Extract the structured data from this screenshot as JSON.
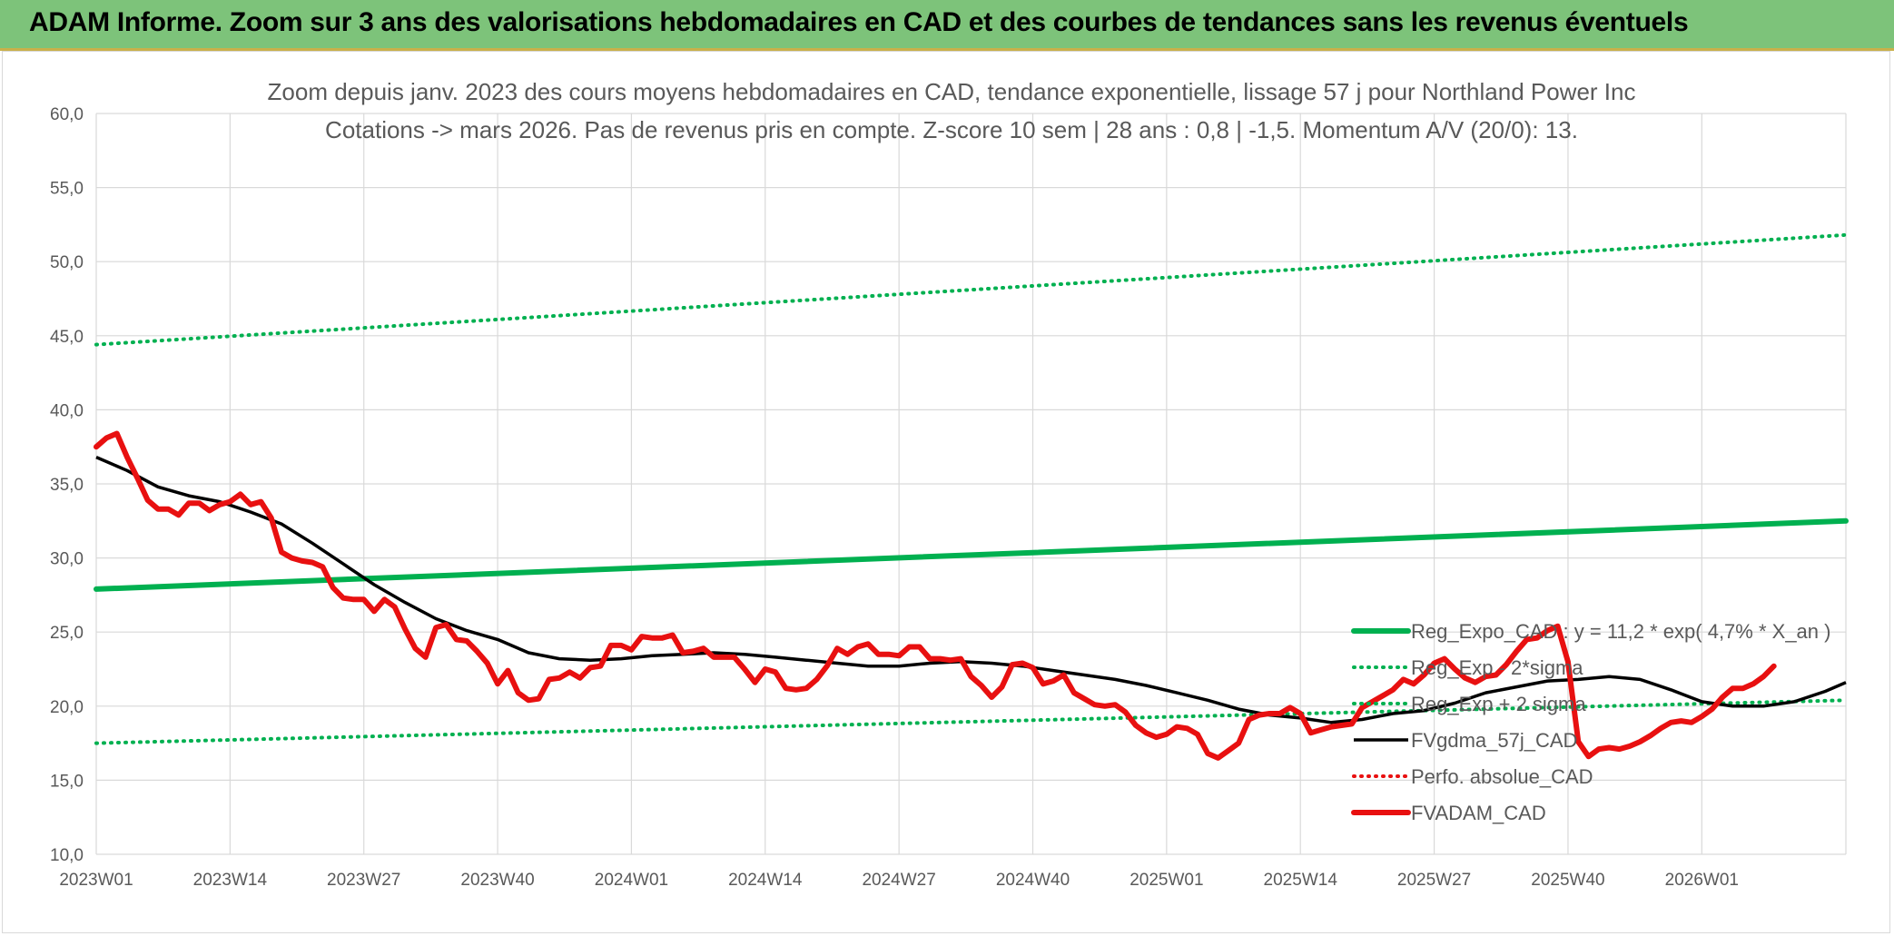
{
  "banner": {
    "title": "ADAM Informe. Zoom sur 3 ans des valorisations hebdomadaires en CAD et des courbes de tendances sans les revenus éventuels"
  },
  "colors": {
    "banner_bg": "#7dc37a",
    "trend_green": "#00b050",
    "price_red": "#e81010",
    "smooth_black": "#000000",
    "text_grey": "#595959"
  },
  "chart_data": {
    "type": "line",
    "title_line1": "Zoom depuis janv. 2023 des cours moyens hebdomadaires en CAD, tendance exponentielle, lissage 57 j pour Northland Power Inc",
    "title_line2": "Cotations -> mars 2026. Pas de revenus pris en compte. Z-score 10 sem | 28 ans : 0,8 | -1,5. Momentum A/V (20/0): 13.",
    "ylim": [
      10,
      60
    ],
    "y_ticks": [
      "10,0",
      "15,0",
      "20,0",
      "25,0",
      "30,0",
      "35,0",
      "40,0",
      "45,0",
      "50,0",
      "55,0",
      "60,0"
    ],
    "x_ticks": [
      "2023W01",
      "2023W14",
      "2023W27",
      "2023W40",
      "2024W01",
      "2024W14",
      "2024W27",
      "2024W40",
      "2025W01",
      "2025W14",
      "2025W27",
      "2025W40",
      "2026W01"
    ],
    "week_span": 170,
    "grid": true,
    "legend_position": "right",
    "series": [
      {
        "name": "Reg_Expo_CAD : y = 11,2 * exp( 4,7% *  X_an )",
        "style": "solid-thick",
        "color": "#00b050",
        "points": [
          [
            0,
            27.9
          ],
          [
            170,
            32.5
          ]
        ]
      },
      {
        "name": "Reg_Exp - 2*sigma",
        "style": "dotted",
        "color": "#00b050",
        "points": [
          [
            0,
            17.5
          ],
          [
            170,
            20.4
          ]
        ]
      },
      {
        "name": "Reg_Exp + 2 sigma",
        "style": "dotted",
        "color": "#00b050",
        "points": [
          [
            0,
            44.4
          ],
          [
            170,
            51.8
          ]
        ]
      },
      {
        "name": "FVgdma_57j_CAD",
        "style": "solid",
        "color": "#000000",
        "points": [
          [
            0,
            36.8
          ],
          [
            3,
            35.9
          ],
          [
            6,
            34.8
          ],
          [
            9,
            34.2
          ],
          [
            12,
            33.8
          ],
          [
            15,
            33.1
          ],
          [
            18,
            32.3
          ],
          [
            21,
            31.0
          ],
          [
            24,
            29.6
          ],
          [
            27,
            28.2
          ],
          [
            30,
            27.0
          ],
          [
            33,
            25.9
          ],
          [
            36,
            25.1
          ],
          [
            39,
            24.5
          ],
          [
            42,
            23.6
          ],
          [
            45,
            23.2
          ],
          [
            48,
            23.1
          ],
          [
            51,
            23.2
          ],
          [
            54,
            23.4
          ],
          [
            57,
            23.5
          ],
          [
            60,
            23.6
          ],
          [
            63,
            23.5
          ],
          [
            66,
            23.3
          ],
          [
            69,
            23.1
          ],
          [
            72,
            22.9
          ],
          [
            75,
            22.7
          ],
          [
            78,
            22.7
          ],
          [
            81,
            22.9
          ],
          [
            84,
            23.0
          ],
          [
            87,
            22.9
          ],
          [
            90,
            22.7
          ],
          [
            93,
            22.4
          ],
          [
            96,
            22.1
          ],
          [
            99,
            21.8
          ],
          [
            102,
            21.4
          ],
          [
            105,
            20.9
          ],
          [
            108,
            20.4
          ],
          [
            111,
            19.8
          ],
          [
            114,
            19.4
          ],
          [
            117,
            19.2
          ],
          [
            120,
            18.9
          ],
          [
            123,
            19.1
          ],
          [
            126,
            19.5
          ],
          [
            129,
            19.7
          ],
          [
            132,
            20.2
          ],
          [
            135,
            20.9
          ],
          [
            138,
            21.3
          ],
          [
            141,
            21.7
          ],
          [
            144,
            21.8
          ],
          [
            147,
            22.0
          ],
          [
            150,
            21.8
          ],
          [
            153,
            21.1
          ],
          [
            156,
            20.3
          ],
          [
            159,
            20.0
          ],
          [
            162,
            20.0
          ],
          [
            165,
            20.3
          ],
          [
            168,
            21.0
          ],
          [
            170,
            21.6
          ]
        ]
      },
      {
        "name": "Perfo. absolue_CAD",
        "style": "dotted",
        "color": "#e81010",
        "points": []
      },
      {
        "name": "FVADAM_CAD",
        "style": "solid-thick",
        "color": "#e81010",
        "points": [
          [
            0,
            37.5
          ],
          [
            1,
            38.1
          ],
          [
            2,
            38.4
          ],
          [
            3,
            36.8
          ],
          [
            4,
            35.4
          ],
          [
            5,
            33.9
          ],
          [
            6,
            33.3
          ],
          [
            7,
            33.3
          ],
          [
            8,
            32.9
          ],
          [
            9,
            33.7
          ],
          [
            10,
            33.7
          ],
          [
            11,
            33.2
          ],
          [
            12,
            33.6
          ],
          [
            13,
            33.8
          ],
          [
            14,
            34.3
          ],
          [
            15,
            33.6
          ],
          [
            16,
            33.8
          ],
          [
            17,
            32.7
          ],
          [
            18,
            30.4
          ],
          [
            19,
            30.0
          ],
          [
            20,
            29.8
          ],
          [
            21,
            29.7
          ],
          [
            22,
            29.4
          ],
          [
            23,
            28.0
          ],
          [
            24,
            27.3
          ],
          [
            25,
            27.2
          ],
          [
            26,
            27.2
          ],
          [
            27,
            26.4
          ],
          [
            28,
            27.2
          ],
          [
            29,
            26.7
          ],
          [
            30,
            25.2
          ],
          [
            31,
            23.9
          ],
          [
            32,
            23.3
          ],
          [
            33,
            25.3
          ],
          [
            34,
            25.5
          ],
          [
            35,
            24.5
          ],
          [
            36,
            24.4
          ],
          [
            37,
            23.7
          ],
          [
            38,
            22.9
          ],
          [
            39,
            21.5
          ],
          [
            40,
            22.4
          ],
          [
            41,
            20.9
          ],
          [
            42,
            20.4
          ],
          [
            43,
            20.5
          ],
          [
            44,
            21.8
          ],
          [
            45,
            21.9
          ],
          [
            46,
            22.3
          ],
          [
            47,
            21.9
          ],
          [
            48,
            22.6
          ],
          [
            49,
            22.7
          ],
          [
            50,
            24.1
          ],
          [
            51,
            24.1
          ],
          [
            52,
            23.8
          ],
          [
            53,
            24.7
          ],
          [
            54,
            24.6
          ],
          [
            55,
            24.6
          ],
          [
            56,
            24.8
          ],
          [
            57,
            23.6
          ],
          [
            58,
            23.7
          ],
          [
            59,
            23.9
          ],
          [
            60,
            23.3
          ],
          [
            61,
            23.3
          ],
          [
            62,
            23.3
          ],
          [
            63,
            22.5
          ],
          [
            64,
            21.6
          ],
          [
            65,
            22.5
          ],
          [
            66,
            22.3
          ],
          [
            67,
            21.2
          ],
          [
            68,
            21.1
          ],
          [
            69,
            21.2
          ],
          [
            70,
            21.8
          ],
          [
            71,
            22.7
          ],
          [
            72,
            23.9
          ],
          [
            73,
            23.5
          ],
          [
            74,
            24.0
          ],
          [
            75,
            24.2
          ],
          [
            76,
            23.5
          ],
          [
            77,
            23.5
          ],
          [
            78,
            23.4
          ],
          [
            79,
            24.0
          ],
          [
            80,
            24.0
          ],
          [
            81,
            23.2
          ],
          [
            82,
            23.2
          ],
          [
            83,
            23.1
          ],
          [
            84,
            23.2
          ],
          [
            85,
            22.0
          ],
          [
            86,
            21.4
          ],
          [
            87,
            20.6
          ],
          [
            88,
            21.3
          ],
          [
            89,
            22.8
          ],
          [
            90,
            22.9
          ],
          [
            91,
            22.6
          ],
          [
            92,
            21.5
          ],
          [
            93,
            21.7
          ],
          [
            94,
            22.1
          ],
          [
            95,
            20.9
          ],
          [
            96,
            20.5
          ],
          [
            97,
            20.1
          ],
          [
            98,
            20.0
          ],
          [
            99,
            20.1
          ],
          [
            100,
            19.6
          ],
          [
            101,
            18.7
          ],
          [
            102,
            18.2
          ],
          [
            103,
            17.9
          ],
          [
            104,
            18.1
          ],
          [
            105,
            18.6
          ],
          [
            106,
            18.5
          ],
          [
            107,
            18.1
          ],
          [
            108,
            16.8
          ],
          [
            109,
            16.5
          ],
          [
            110,
            17.0
          ],
          [
            111,
            17.5
          ],
          [
            112,
            19.1
          ],
          [
            113,
            19.4
          ],
          [
            114,
            19.5
          ],
          [
            115,
            19.5
          ],
          [
            116,
            19.9
          ],
          [
            117,
            19.5
          ],
          [
            118,
            18.2
          ],
          [
            119,
            18.4
          ],
          [
            120,
            18.6
          ],
          [
            121,
            18.7
          ],
          [
            122,
            18.8
          ],
          [
            123,
            19.9
          ],
          [
            124,
            20.3
          ],
          [
            125,
            20.7
          ],
          [
            126,
            21.1
          ],
          [
            127,
            21.8
          ],
          [
            128,
            21.5
          ],
          [
            129,
            22.1
          ],
          [
            130,
            22.9
          ],
          [
            131,
            23.2
          ],
          [
            132,
            22.5
          ],
          [
            133,
            21.9
          ],
          [
            134,
            21.6
          ],
          [
            135,
            22.0
          ],
          [
            136,
            22.1
          ],
          [
            137,
            22.8
          ],
          [
            138,
            23.7
          ],
          [
            139,
            24.5
          ],
          [
            140,
            24.6
          ],
          [
            141,
            25.1
          ],
          [
            142,
            25.4
          ],
          [
            143,
            23.0
          ],
          [
            144,
            17.6
          ],
          [
            145,
            16.6
          ],
          [
            146,
            17.1
          ],
          [
            147,
            17.2
          ],
          [
            148,
            17.1
          ],
          [
            149,
            17.3
          ],
          [
            150,
            17.6
          ],
          [
            151,
            18.0
          ],
          [
            152,
            18.5
          ],
          [
            153,
            18.9
          ],
          [
            154,
            19.0
          ],
          [
            155,
            18.9
          ],
          [
            156,
            19.3
          ],
          [
            157,
            19.8
          ],
          [
            158,
            20.6
          ],
          [
            159,
            21.2
          ],
          [
            160,
            21.2
          ],
          [
            161,
            21.5
          ],
          [
            162,
            22.0
          ],
          [
            163,
            22.7
          ]
        ]
      }
    ]
  }
}
